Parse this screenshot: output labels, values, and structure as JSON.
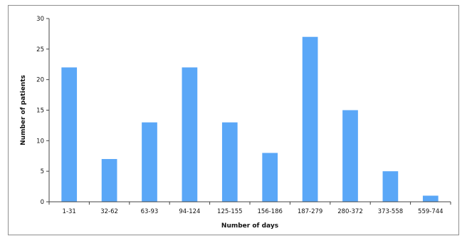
{
  "chart_data": {
    "type": "bar",
    "categories": [
      "1-31",
      "32-62",
      "63-93",
      "94-124",
      "125-155",
      "156-186",
      "187-279",
      "280-372",
      "373-558",
      "559-744"
    ],
    "values": [
      22,
      7,
      13,
      22,
      13,
      8,
      27,
      15,
      5,
      1
    ],
    "xlabel": "Number of days",
    "ylabel": "Number of patients",
    "ylim": [
      0,
      30
    ],
    "yticks": [
      0,
      5,
      10,
      15,
      20,
      25,
      30
    ],
    "grid": false,
    "legend": "none",
    "bar_color": "#5aa7f7"
  }
}
